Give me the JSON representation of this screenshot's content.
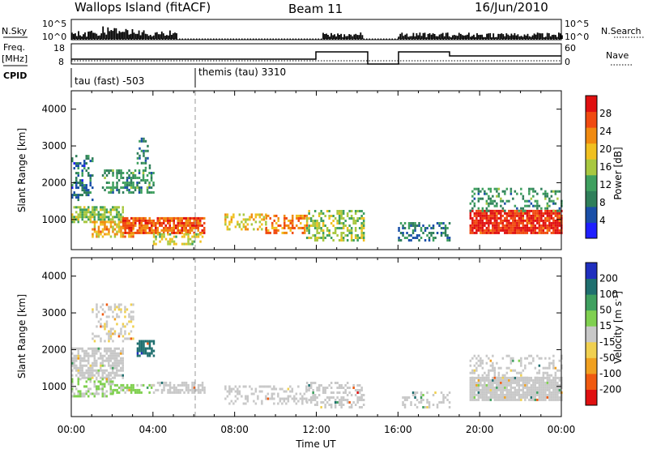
{
  "header": {
    "station": "Wallops Island (fitACF)",
    "beam": "Beam 11",
    "date": "16/Jun/2010"
  },
  "panels": {
    "nsky_label": "N.Sky",
    "nsky_tick_top": "10^5",
    "nsky_tick_bottom": "10^0",
    "nsearch_label": "N.Search",
    "nsearch_tick_top": "10^5",
    "nsearch_tick_bottom": "10^0",
    "freq_label_1": "Freq.",
    "freq_label_2": "[MHz]",
    "freq_tick_top": "18",
    "freq_tick_bottom": "8",
    "nave_label": "Nave",
    "nave_tick_top": "60",
    "nave_tick_bottom": "0",
    "cpid_label": "CPID",
    "cpid_1": "tau (fast) -503",
    "cpid_2": "themis (tau) 3310"
  },
  "colors": {
    "power": [
      "#1f1fff",
      "#1a4fa8",
      "#2f7f5a",
      "#3fa05f",
      "#a8c840",
      "#f0c020",
      "#f08a10",
      "#f04a10",
      "#e01010"
    ],
    "velocity": [
      "#e01010",
      "#f05a10",
      "#f0a020",
      "#f0d050",
      "#c8c8c8",
      "#80d050",
      "#3fa05f",
      "#1f6f6f",
      "#1f2fbf"
    ]
  },
  "chart_data": [
    {
      "type": "heatmap",
      "title": "Power",
      "xlabel": "Time UT",
      "ylabel": "Slant Range [km]",
      "xlim": [
        "00:00",
        "24:00"
      ],
      "x_ticks": [
        "00:00",
        "04:00",
        "08:00",
        "12:00",
        "16:00",
        "20:00",
        "00:00"
      ],
      "ylim": [
        180,
        4500
      ],
      "y_ticks": [
        1000,
        2000,
        3000,
        4000
      ],
      "y_tick_labels": [
        "1000",
        "2000",
        "3000",
        "4000"
      ],
      "colorbar_label": "Power [dB]",
      "colorbar_ticks": [
        "4",
        "8",
        "12",
        "16",
        "20",
        "24",
        "28"
      ],
      "colorbar_range": [
        0,
        30
      ],
      "blobs": [
        {
          "t0": 0.0,
          "t1": 2.5,
          "r0": 900,
          "r1": 1300,
          "v": 14,
          "d": 0.7
        },
        {
          "t0": 0.0,
          "t1": 1.0,
          "r0": 1500,
          "r1": 2700,
          "v": 7,
          "d": 0.4
        },
        {
          "t0": 1.5,
          "t1": 4.0,
          "r0": 1700,
          "r1": 2300,
          "v": 10,
          "d": 0.5
        },
        {
          "t0": 3.2,
          "t1": 3.8,
          "r0": 2300,
          "r1": 3200,
          "v": 8,
          "d": 0.3
        },
        {
          "t0": 1.0,
          "t1": 3.0,
          "r0": 500,
          "r1": 900,
          "v": 20,
          "d": 0.6
        },
        {
          "t0": 2.5,
          "t1": 6.5,
          "r0": 600,
          "r1": 1000,
          "v": 24,
          "d": 0.8
        },
        {
          "t0": 4.0,
          "t1": 6.5,
          "r0": 300,
          "r1": 600,
          "v": 16,
          "d": 0.4
        },
        {
          "t0": 7.5,
          "t1": 9.5,
          "r0": 700,
          "r1": 1100,
          "v": 18,
          "d": 0.4
        },
        {
          "t0": 9.5,
          "t1": 11.5,
          "r0": 600,
          "r1": 1100,
          "v": 22,
          "d": 0.5
        },
        {
          "t0": 11.5,
          "t1": 14.3,
          "r0": 400,
          "r1": 1200,
          "v": 14,
          "d": 0.5
        },
        {
          "t0": 16.0,
          "t1": 18.5,
          "r0": 400,
          "r1": 900,
          "v": 8,
          "d": 0.4
        },
        {
          "t0": 19.5,
          "t1": 24.0,
          "r0": 600,
          "r1": 1200,
          "v": 27,
          "d": 0.9
        },
        {
          "t0": 19.5,
          "t1": 24.0,
          "r0": 1200,
          "r1": 1800,
          "v": 10,
          "d": 0.3
        }
      ]
    },
    {
      "type": "heatmap",
      "title": "Velocity",
      "xlabel": "Time UT",
      "ylabel": "Slant Range [km]",
      "xlim": [
        "00:00",
        "24:00"
      ],
      "x_ticks": [
        "00:00",
        "04:00",
        "08:00",
        "12:00",
        "16:00",
        "20:00",
        "00:00"
      ],
      "ylim": [
        180,
        4500
      ],
      "y_ticks": [
        1000,
        2000,
        3000,
        4000
      ],
      "y_tick_labels": [
        "1000",
        "2000",
        "3000",
        "4000"
      ],
      "colorbar_label": "Velocity [m s^-1]",
      "colorbar_ticks": [
        "-200",
        "-100",
        "-50",
        "-15",
        "15",
        "50",
        "100",
        "200"
      ],
      "colorbar_range": [
        -250,
        250
      ],
      "blobs": [
        {
          "t0": 0.0,
          "t1": 2.5,
          "r0": 1200,
          "r1": 2000,
          "v": 0,
          "d": 0.7
        },
        {
          "t0": 0.0,
          "t1": 2.0,
          "r0": 700,
          "r1": 1200,
          "v": 30,
          "d": 0.5
        },
        {
          "t0": 2.0,
          "t1": 4.0,
          "r0": 800,
          "r1": 1000,
          "v": 40,
          "d": 0.6
        },
        {
          "t0": 3.2,
          "t1": 4.0,
          "r0": 1800,
          "r1": 2200,
          "v": 180,
          "d": 0.6
        },
        {
          "t0": 1.0,
          "t1": 3.0,
          "r0": 2200,
          "r1": 3200,
          "v": -20,
          "d": 0.3
        },
        {
          "t0": 4.0,
          "t1": 6.5,
          "r0": 800,
          "r1": 1100,
          "v": 0,
          "d": 0.6
        },
        {
          "t0": 7.5,
          "t1": 11.5,
          "r0": 500,
          "r1": 1000,
          "v": 0,
          "d": 0.4
        },
        {
          "t0": 11.5,
          "t1": 14.3,
          "r0": 400,
          "r1": 1100,
          "v": 0,
          "d": 0.4
        },
        {
          "t0": 16.0,
          "t1": 18.5,
          "r0": 400,
          "r1": 800,
          "v": 0,
          "d": 0.3
        },
        {
          "t0": 19.5,
          "t1": 24.0,
          "r0": 600,
          "r1": 1200,
          "v": 0,
          "d": 0.9
        },
        {
          "t0": 19.5,
          "t1": 24.0,
          "r0": 1200,
          "r1": 1800,
          "v": 0,
          "d": 0.3
        }
      ]
    }
  ]
}
